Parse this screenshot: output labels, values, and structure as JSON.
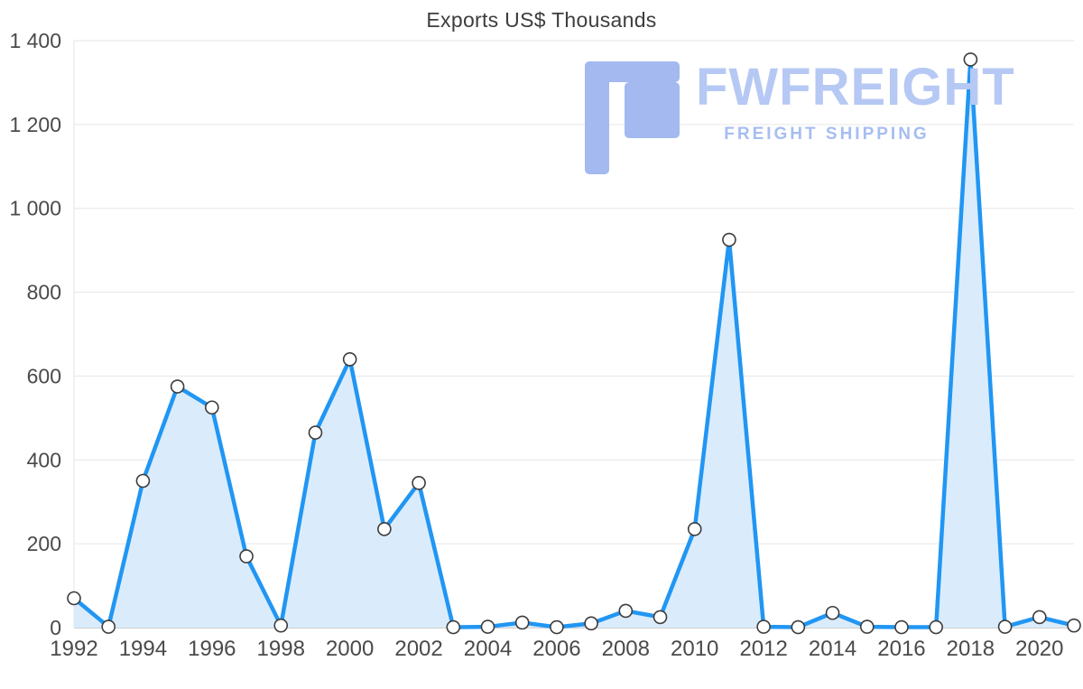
{
  "chart": {
    "title": "Exports US$ Thousands"
  },
  "watermark": {
    "brand": "FWFREIGHT",
    "tagline": "FREIGHT SHIPPING",
    "logo_color": "#a3b9ef",
    "brand_color": "#b6c8f4",
    "tagline_color": "#a6bdf1"
  },
  "chart_data": {
    "type": "area",
    "title": "Exports US$ Thousands",
    "xlabel": "",
    "ylabel": "",
    "legend": "none",
    "grid": "horizontal",
    "x": [
      1992,
      1993,
      1994,
      1995,
      1996,
      1997,
      1998,
      1999,
      2000,
      2001,
      2002,
      2003,
      2004,
      2005,
      2006,
      2007,
      2008,
      2009,
      2010,
      2011,
      2012,
      2013,
      2014,
      2015,
      2016,
      2017,
      2018,
      2019,
      2020,
      2021
    ],
    "values": [
      70,
      2,
      350,
      575,
      525,
      170,
      5,
      465,
      640,
      235,
      345,
      1,
      2,
      12,
      1,
      10,
      40,
      25,
      235,
      925,
      2,
      1,
      35,
      2,
      1,
      1,
      1355,
      2,
      25,
      5
    ],
    "xticks": [
      1992,
      1994,
      1996,
      1998,
      2000,
      2002,
      2004,
      2006,
      2008,
      2010,
      2012,
      2014,
      2016,
      2018,
      2020
    ],
    "yticks": [
      0,
      200,
      400,
      600,
      800,
      1000,
      1200,
      1400
    ],
    "ytick_labels": [
      "0",
      "200",
      "400",
      "600",
      "800",
      "1 000",
      "1 200",
      "1 400"
    ],
    "ylim": [
      0,
      1400
    ],
    "colors": {
      "line": "#2196f3",
      "fill": "#daecfc",
      "marker_fill": "#ffffff",
      "marker_stroke": "#3c3c3c",
      "grid": "#e6e6e6",
      "axis": "#bdbdbd",
      "tick_text": "#4a4a4a",
      "title": "#3d3d3d"
    }
  }
}
